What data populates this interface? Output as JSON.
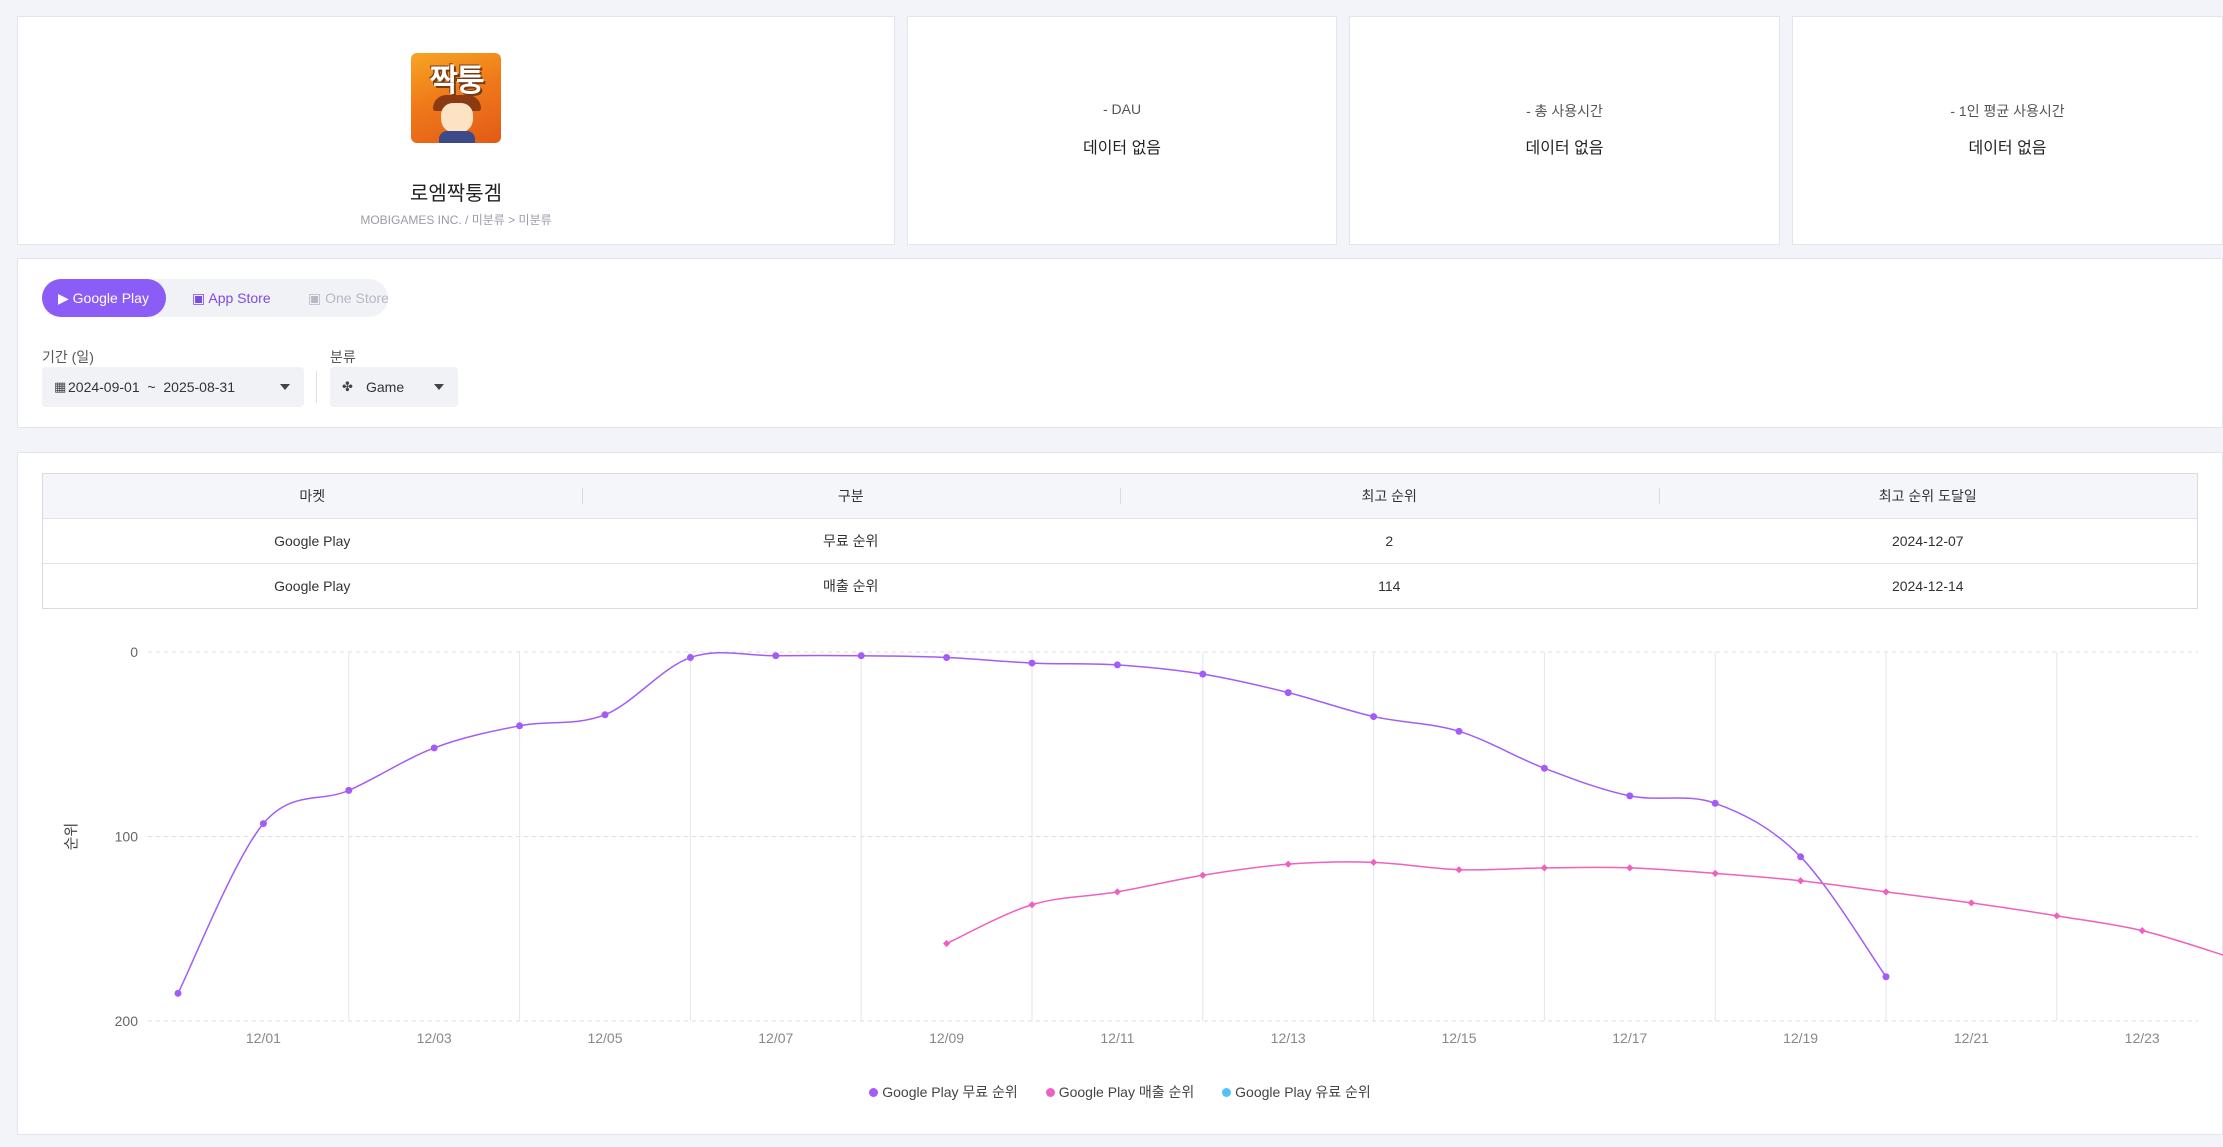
{
  "app": {
    "name": "로엠짝퉁겜",
    "logo_text": "짝퉁",
    "publisher": "MOBIGAMES INC.",
    "category_separator": "/",
    "category_main": "미분류",
    "category_arrow": ">",
    "category_sub": "미분류"
  },
  "stats": [
    {
      "label": "- DAU",
      "value": "데이터 없음"
    },
    {
      "label": "- 총 사용시간",
      "value": "데이터 없음"
    },
    {
      "label": "- 1인 평균 사용시간",
      "value": "데이터 없음"
    }
  ],
  "market_tabs": [
    {
      "label": "Google Play",
      "icon": "play-icon",
      "active": true
    },
    {
      "label": "App Store",
      "icon": "app-store-icon",
      "active": false
    },
    {
      "label": "One Store",
      "icon": "one-store-icon",
      "active": false,
      "disabled": true
    }
  ],
  "filters": {
    "period_label": "기간 (일)",
    "period_start": "2024-09-01",
    "period_sep": "~",
    "period_end": "2025-08-31",
    "category_label": "분류",
    "category_value": "Game"
  },
  "rank_table": {
    "headers": [
      "마켓",
      "구분",
      "최고 순위",
      "최고 순위 도달일"
    ],
    "rows": [
      [
        "Google Play",
        "무료 순위",
        "2",
        "2024-12-07"
      ],
      [
        "Google Play",
        "매출 순위",
        "114",
        "2024-12-14"
      ]
    ]
  },
  "colors": {
    "accent": "#8b5cf6",
    "free": "#a35cf5",
    "revenue": "#f060c0",
    "paid": "#4fc3f7"
  },
  "chart_data": {
    "type": "line",
    "ylabel": "순위",
    "y_inverted": true,
    "ylim": [
      0,
      200
    ],
    "yticks": [
      0,
      100,
      200
    ],
    "xticks": [
      "12/01",
      "12/03",
      "12/05",
      "12/07",
      "12/09",
      "12/11",
      "12/13",
      "12/15",
      "12/17",
      "12/19",
      "12/21",
      "12/23"
    ],
    "legend_position": "bottom",
    "grid": true,
    "series": [
      {
        "name": "Google Play 무료 순위",
        "color": "#a35cf5",
        "points": [
          [
            "11/30",
            185
          ],
          [
            "12/01",
            93
          ],
          [
            "12/02",
            75
          ],
          [
            "12/03",
            52
          ],
          [
            "12/04",
            40
          ],
          [
            "12/05",
            34
          ],
          [
            "12/06",
            3
          ],
          [
            "12/07",
            2
          ],
          [
            "12/08",
            2
          ],
          [
            "12/09",
            3
          ],
          [
            "12/10",
            6
          ],
          [
            "12/11",
            7
          ],
          [
            "12/12",
            12
          ],
          [
            "12/13",
            22
          ],
          [
            "12/14",
            35
          ],
          [
            "12/15",
            43
          ],
          [
            "12/16",
            63
          ],
          [
            "12/17",
            78
          ],
          [
            "12/18",
            82
          ],
          [
            "12/19",
            111
          ],
          [
            "12/20",
            176
          ]
        ]
      },
      {
        "name": "Google Play 매출 순위",
        "color": "#f060c0",
        "points": [
          [
            "12/09",
            158
          ],
          [
            "12/10",
            137
          ],
          [
            "12/11",
            130
          ],
          [
            "12/12",
            121
          ],
          [
            "12/13",
            115
          ],
          [
            "12/14",
            114
          ],
          [
            "12/15",
            118
          ],
          [
            "12/16",
            117
          ],
          [
            "12/17",
            117
          ],
          [
            "12/18",
            120
          ],
          [
            "12/19",
            124
          ],
          [
            "12/20",
            130
          ],
          [
            "12/21",
            136
          ],
          [
            "12/22",
            143
          ],
          [
            "12/23",
            151
          ],
          [
            "12/24",
            165
          ]
        ]
      },
      {
        "name": "Google Play 유료 순위",
        "color": "#4fc3f7",
        "points": []
      }
    ]
  }
}
